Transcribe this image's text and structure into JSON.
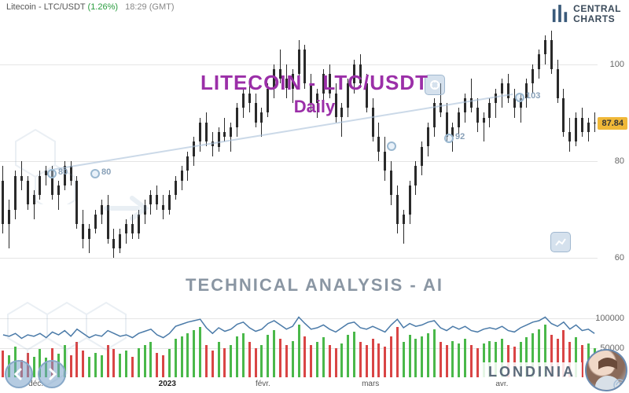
{
  "header": {
    "name": "Litecoin - LTC/USDT",
    "pct": "(1.26%)",
    "time": "18:29",
    "tz": "(GMT)"
  },
  "logo": {
    "line1": "CENTRAL",
    "line2": "CHARTS"
  },
  "overlay": {
    "title": "LITECOIN - LTC/USDT",
    "sub": "Daily",
    "tech": "TECHNICAL  ANALYSIS - AI"
  },
  "brand": "LONDINIA",
  "price_chart": {
    "type": "candlestick",
    "ylim": [
      50,
      110
    ],
    "yticks": [
      60,
      80,
      100
    ],
    "grid_color": "#e5e5e5",
    "candle_color": "#2a2a2a",
    "current_price": 87.84,
    "badge_bg": "#f0b838",
    "title_color": "#9b2fa8",
    "title_fontsize": 26,
    "candles": [
      {
        "o": 76,
        "h": 79,
        "l": 65,
        "c": 67
      },
      {
        "o": 67,
        "h": 72,
        "l": 62,
        "c": 70
      },
      {
        "o": 70,
        "h": 78,
        "l": 68,
        "c": 77
      },
      {
        "o": 77,
        "h": 80,
        "l": 74,
        "c": 76
      },
      {
        "o": 76,
        "h": 77,
        "l": 70,
        "c": 71
      },
      {
        "o": 71,
        "h": 74,
        "l": 68,
        "c": 73
      },
      {
        "o": 73,
        "h": 78,
        "l": 72,
        "c": 77
      },
      {
        "o": 77,
        "h": 79,
        "l": 75,
        "c": 78
      },
      {
        "o": 78,
        "h": 79,
        "l": 72,
        "c": 73
      },
      {
        "o": 73,
        "h": 76,
        "l": 70,
        "c": 75
      },
      {
        "o": 75,
        "h": 80,
        "l": 74,
        "c": 79
      },
      {
        "o": 79,
        "h": 80,
        "l": 75,
        "c": 76
      },
      {
        "o": 76,
        "h": 77,
        "l": 66,
        "c": 67
      },
      {
        "o": 67,
        "h": 70,
        "l": 62,
        "c": 64
      },
      {
        "o": 64,
        "h": 67,
        "l": 61,
        "c": 66
      },
      {
        "o": 66,
        "h": 70,
        "l": 65,
        "c": 69
      },
      {
        "o": 69,
        "h": 72,
        "l": 67,
        "c": 71
      },
      {
        "o": 71,
        "h": 73,
        "l": 63,
        "c": 64
      },
      {
        "o": 64,
        "h": 66,
        "l": 60,
        "c": 62
      },
      {
        "o": 62,
        "h": 66,
        "l": 61,
        "c": 65
      },
      {
        "o": 65,
        "h": 68,
        "l": 63,
        "c": 67
      },
      {
        "o": 67,
        "h": 69,
        "l": 64,
        "c": 65
      },
      {
        "o": 65,
        "h": 70,
        "l": 64,
        "c": 69
      },
      {
        "o": 69,
        "h": 72,
        "l": 67,
        "c": 71
      },
      {
        "o": 71,
        "h": 74,
        "l": 69,
        "c": 73
      },
      {
        "o": 73,
        "h": 75,
        "l": 70,
        "c": 71
      },
      {
        "o": 71,
        "h": 73,
        "l": 68,
        "c": 70
      },
      {
        "o": 70,
        "h": 74,
        "l": 69,
        "c": 73
      },
      {
        "o": 73,
        "h": 77,
        "l": 72,
        "c": 76
      },
      {
        "o": 76,
        "h": 79,
        "l": 74,
        "c": 78
      },
      {
        "o": 78,
        "h": 82,
        "l": 76,
        "c": 81
      },
      {
        "o": 81,
        "h": 85,
        "l": 79,
        "c": 84
      },
      {
        "o": 84,
        "h": 89,
        "l": 82,
        "c": 88
      },
      {
        "o": 88,
        "h": 90,
        "l": 83,
        "c": 84
      },
      {
        "o": 84,
        "h": 86,
        "l": 81,
        "c": 83
      },
      {
        "o": 83,
        "h": 87,
        "l": 82,
        "c": 86
      },
      {
        "o": 86,
        "h": 89,
        "l": 84,
        "c": 85
      },
      {
        "o": 85,
        "h": 88,
        "l": 82,
        "c": 87
      },
      {
        "o": 87,
        "h": 92,
        "l": 85,
        "c": 91
      },
      {
        "o": 91,
        "h": 95,
        "l": 89,
        "c": 94
      },
      {
        "o": 94,
        "h": 97,
        "l": 90,
        "c": 92
      },
      {
        "o": 92,
        "h": 94,
        "l": 87,
        "c": 88
      },
      {
        "o": 88,
        "h": 91,
        "l": 85,
        "c": 90
      },
      {
        "o": 90,
        "h": 96,
        "l": 89,
        "c": 95
      },
      {
        "o": 95,
        "h": 100,
        "l": 93,
        "c": 99
      },
      {
        "o": 99,
        "h": 103,
        "l": 96,
        "c": 97
      },
      {
        "o": 97,
        "h": 100,
        "l": 93,
        "c": 95
      },
      {
        "o": 95,
        "h": 99,
        "l": 92,
        "c": 98
      },
      {
        "o": 98,
        "h": 105,
        "l": 96,
        "c": 103
      },
      {
        "o": 103,
        "h": 104,
        "l": 95,
        "c": 96
      },
      {
        "o": 96,
        "h": 98,
        "l": 90,
        "c": 92
      },
      {
        "o": 92,
        "h": 95,
        "l": 89,
        "c": 94
      },
      {
        "o": 94,
        "h": 99,
        "l": 92,
        "c": 98
      },
      {
        "o": 98,
        "h": 100,
        "l": 93,
        "c": 94
      },
      {
        "o": 94,
        "h": 96,
        "l": 88,
        "c": 89
      },
      {
        "o": 89,
        "h": 92,
        "l": 85,
        "c": 91
      },
      {
        "o": 91,
        "h": 97,
        "l": 89,
        "c": 96
      },
      {
        "o": 96,
        "h": 101,
        "l": 94,
        "c": 100
      },
      {
        "o": 100,
        "h": 102,
        "l": 95,
        "c": 96
      },
      {
        "o": 96,
        "h": 98,
        "l": 90,
        "c": 91
      },
      {
        "o": 91,
        "h": 93,
        "l": 84,
        "c": 85
      },
      {
        "o": 85,
        "h": 88,
        "l": 80,
        "c": 82
      },
      {
        "o": 82,
        "h": 85,
        "l": 76,
        "c": 78
      },
      {
        "o": 78,
        "h": 80,
        "l": 71,
        "c": 73
      },
      {
        "o": 73,
        "h": 75,
        "l": 65,
        "c": 67
      },
      {
        "o": 67,
        "h": 70,
        "l": 63,
        "c": 69
      },
      {
        "o": 69,
        "h": 76,
        "l": 67,
        "c": 75
      },
      {
        "o": 75,
        "h": 80,
        "l": 73,
        "c": 79
      },
      {
        "o": 79,
        "h": 84,
        "l": 77,
        "c": 83
      },
      {
        "o": 83,
        "h": 88,
        "l": 81,
        "c": 87
      },
      {
        "o": 87,
        "h": 93,
        "l": 85,
        "c": 92
      },
      {
        "o": 92,
        "h": 96,
        "l": 89,
        "c": 90
      },
      {
        "o": 90,
        "h": 92,
        "l": 84,
        "c": 85
      },
      {
        "o": 85,
        "h": 88,
        "l": 82,
        "c": 87
      },
      {
        "o": 87,
        "h": 91,
        "l": 85,
        "c": 90
      },
      {
        "o": 90,
        "h": 94,
        "l": 88,
        "c": 93
      },
      {
        "o": 93,
        "h": 97,
        "l": 90,
        "c": 91
      },
      {
        "o": 91,
        "h": 93,
        "l": 86,
        "c": 88
      },
      {
        "o": 88,
        "h": 90,
        "l": 84,
        "c": 89
      },
      {
        "o": 89,
        "h": 93,
        "l": 87,
        "c": 92
      },
      {
        "o": 92,
        "h": 95,
        "l": 89,
        "c": 94
      },
      {
        "o": 94,
        "h": 97,
        "l": 91,
        "c": 96
      },
      {
        "o": 96,
        "h": 98,
        "l": 92,
        "c": 93
      },
      {
        "o": 93,
        "h": 95,
        "l": 89,
        "c": 91
      },
      {
        "o": 91,
        "h": 94,
        "l": 88,
        "c": 93
      },
      {
        "o": 93,
        "h": 97,
        "l": 91,
        "c": 96
      },
      {
        "o": 96,
        "h": 100,
        "l": 94,
        "c": 99
      },
      {
        "o": 99,
        "h": 103,
        "l": 97,
        "c": 102
      },
      {
        "o": 102,
        "h": 106,
        "l": 100,
        "c": 105
      },
      {
        "o": 105,
        "h": 107,
        "l": 98,
        "c": 99
      },
      {
        "o": 99,
        "h": 101,
        "l": 92,
        "c": 93
      },
      {
        "o": 93,
        "h": 95,
        "l": 85,
        "c": 86
      },
      {
        "o": 86,
        "h": 89,
        "l": 82,
        "c": 84
      },
      {
        "o": 84,
        "h": 90,
        "l": 83,
        "c": 89
      },
      {
        "o": 89,
        "h": 91,
        "l": 85,
        "c": 86
      },
      {
        "o": 86,
        "h": 89,
        "l": 84,
        "c": 88
      },
      {
        "o": 88,
        "h": 90,
        "l": 86,
        "c": 88
      }
    ]
  },
  "volume_chart": {
    "type": "bar+line",
    "ylim": [
      0,
      120000
    ],
    "yticks": [
      50000,
      100000
    ],
    "green": "#4ab84a",
    "red": "#d94545",
    "line_color": "#4a7aa8",
    "volumes": [
      {
        "v": 45000,
        "d": "r"
      },
      {
        "v": 38000,
        "d": "g"
      },
      {
        "v": 52000,
        "d": "g"
      },
      {
        "v": 30000,
        "d": "r"
      },
      {
        "v": 42000,
        "d": "r"
      },
      {
        "v": 35000,
        "d": "g"
      },
      {
        "v": 48000,
        "d": "g"
      },
      {
        "v": 33000,
        "d": "g"
      },
      {
        "v": 50000,
        "d": "r"
      },
      {
        "v": 40000,
        "d": "g"
      },
      {
        "v": 55000,
        "d": "g"
      },
      {
        "v": 38000,
        "d": "r"
      },
      {
        "v": 60000,
        "d": "r"
      },
      {
        "v": 45000,
        "d": "r"
      },
      {
        "v": 35000,
        "d": "g"
      },
      {
        "v": 42000,
        "d": "g"
      },
      {
        "v": 38000,
        "d": "g"
      },
      {
        "v": 55000,
        "d": "r"
      },
      {
        "v": 48000,
        "d": "r"
      },
      {
        "v": 40000,
        "d": "g"
      },
      {
        "v": 45000,
        "d": "g"
      },
      {
        "v": 35000,
        "d": "r"
      },
      {
        "v": 50000,
        "d": "g"
      },
      {
        "v": 55000,
        "d": "g"
      },
      {
        "v": 60000,
        "d": "g"
      },
      {
        "v": 42000,
        "d": "r"
      },
      {
        "v": 38000,
        "d": "r"
      },
      {
        "v": 48000,
        "d": "g"
      },
      {
        "v": 65000,
        "d": "g"
      },
      {
        "v": 70000,
        "d": "g"
      },
      {
        "v": 75000,
        "d": "g"
      },
      {
        "v": 80000,
        "d": "g"
      },
      {
        "v": 85000,
        "d": "g"
      },
      {
        "v": 55000,
        "d": "r"
      },
      {
        "v": 45000,
        "d": "r"
      },
      {
        "v": 60000,
        "d": "g"
      },
      {
        "v": 50000,
        "d": "r"
      },
      {
        "v": 55000,
        "d": "g"
      },
      {
        "v": 70000,
        "d": "g"
      },
      {
        "v": 75000,
        "d": "g"
      },
      {
        "v": 60000,
        "d": "r"
      },
      {
        "v": 50000,
        "d": "r"
      },
      {
        "v": 55000,
        "d": "g"
      },
      {
        "v": 72000,
        "d": "g"
      },
      {
        "v": 80000,
        "d": "g"
      },
      {
        "v": 65000,
        "d": "r"
      },
      {
        "v": 55000,
        "d": "r"
      },
      {
        "v": 62000,
        "d": "g"
      },
      {
        "v": 90000,
        "d": "g"
      },
      {
        "v": 70000,
        "d": "r"
      },
      {
        "v": 55000,
        "d": "r"
      },
      {
        "v": 60000,
        "d": "g"
      },
      {
        "v": 68000,
        "d": "g"
      },
      {
        "v": 55000,
        "d": "r"
      },
      {
        "v": 50000,
        "d": "r"
      },
      {
        "v": 58000,
        "d": "g"
      },
      {
        "v": 72000,
        "d": "g"
      },
      {
        "v": 78000,
        "d": "g"
      },
      {
        "v": 60000,
        "d": "r"
      },
      {
        "v": 55000,
        "d": "r"
      },
      {
        "v": 65000,
        "d": "r"
      },
      {
        "v": 58000,
        "d": "r"
      },
      {
        "v": 52000,
        "d": "r"
      },
      {
        "v": 70000,
        "d": "r"
      },
      {
        "v": 85000,
        "d": "r"
      },
      {
        "v": 60000,
        "d": "g"
      },
      {
        "v": 72000,
        "d": "g"
      },
      {
        "v": 65000,
        "d": "g"
      },
      {
        "v": 70000,
        "d": "g"
      },
      {
        "v": 75000,
        "d": "g"
      },
      {
        "v": 82000,
        "d": "g"
      },
      {
        "v": 60000,
        "d": "r"
      },
      {
        "v": 55000,
        "d": "r"
      },
      {
        "v": 62000,
        "d": "g"
      },
      {
        "v": 58000,
        "d": "g"
      },
      {
        "v": 65000,
        "d": "g"
      },
      {
        "v": 55000,
        "d": "r"
      },
      {
        "v": 50000,
        "d": "r"
      },
      {
        "v": 58000,
        "d": "g"
      },
      {
        "v": 62000,
        "d": "g"
      },
      {
        "v": 60000,
        "d": "g"
      },
      {
        "v": 65000,
        "d": "g"
      },
      {
        "v": 55000,
        "d": "r"
      },
      {
        "v": 52000,
        "d": "r"
      },
      {
        "v": 60000,
        "d": "g"
      },
      {
        "v": 68000,
        "d": "g"
      },
      {
        "v": 75000,
        "d": "g"
      },
      {
        "v": 82000,
        "d": "g"
      },
      {
        "v": 90000,
        "d": "g"
      },
      {
        "v": 72000,
        "d": "r"
      },
      {
        "v": 65000,
        "d": "r"
      },
      {
        "v": 80000,
        "d": "r"
      },
      {
        "v": 60000,
        "d": "r"
      },
      {
        "v": 68000,
        "d": "g"
      },
      {
        "v": 55000,
        "d": "r"
      },
      {
        "v": 58000,
        "d": "g"
      },
      {
        "v": 50000,
        "d": "g"
      }
    ],
    "line": [
      60,
      58,
      62,
      55,
      60,
      58,
      62,
      56,
      64,
      60,
      66,
      58,
      68,
      62,
      56,
      60,
      58,
      66,
      62,
      58,
      60,
      56,
      62,
      65,
      68,
      60,
      56,
      62,
      72,
      75,
      78,
      80,
      82,
      70,
      62,
      70,
      65,
      68,
      75,
      78,
      70,
      65,
      68,
      76,
      80,
      74,
      68,
      72,
      85,
      76,
      68,
      70,
      74,
      68,
      64,
      70,
      76,
      78,
      70,
      68,
      72,
      68,
      64,
      74,
      82,
      70,
      76,
      72,
      74,
      78,
      80,
      70,
      66,
      72,
      68,
      72,
      66,
      64,
      68,
      70,
      68,
      72,
      66,
      64,
      70,
      74,
      78,
      80,
      85,
      76,
      72,
      78,
      68,
      74,
      66,
      68,
      62
    ]
  },
  "x_axis": {
    "ticks": [
      {
        "pos": 0.06,
        "label": "déc.",
        "bold": false
      },
      {
        "pos": 0.28,
        "label": "2023",
        "bold": true
      },
      {
        "pos": 0.44,
        "label": "févr.",
        "bold": false
      },
      {
        "pos": 0.62,
        "label": "mars",
        "bold": false
      },
      {
        "pos": 0.84,
        "label": "avr.",
        "bold": false
      }
    ]
  },
  "watermark_points": [
    {
      "x": 60,
      "y": 215,
      "label": "80"
    },
    {
      "x": 115,
      "y": 215,
      "label": "80"
    },
    {
      "x": 492,
      "y": 180,
      "label": ""
    },
    {
      "x": 565,
      "y": 170,
      "label": "92"
    },
    {
      "x": 655,
      "y": 118,
      "label": "103"
    }
  ]
}
